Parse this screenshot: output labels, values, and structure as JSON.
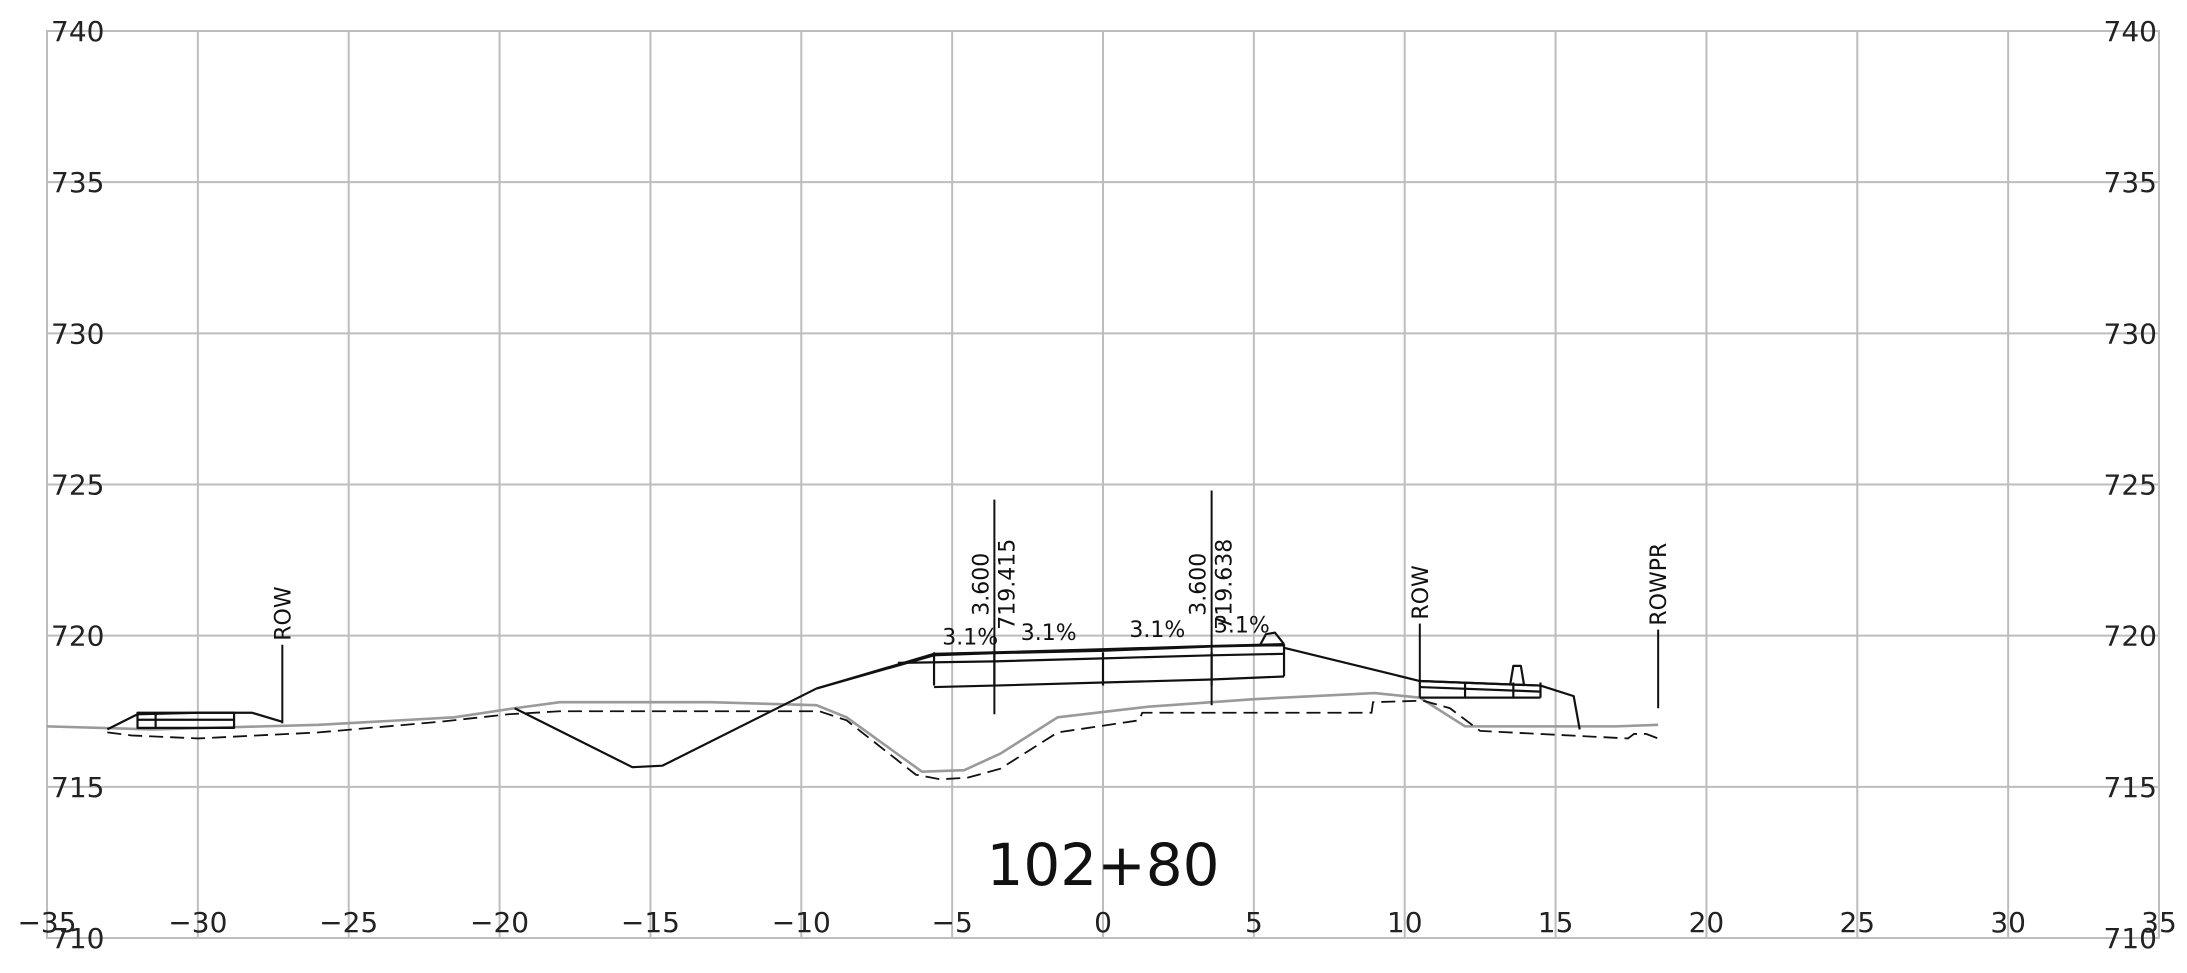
{
  "chart_data": {
    "type": "cross-section",
    "station": "102+80",
    "xlim": [
      -35,
      35
    ],
    "ylim": [
      710,
      740
    ],
    "x_ticks": [
      -35,
      -30,
      -25,
      -20,
      -15,
      -10,
      -5,
      0,
      5,
      10,
      15,
      20,
      25,
      30,
      35
    ],
    "x_tick_labels": [
      "−35",
      "−30",
      "−25",
      "−20",
      "−15",
      "−10",
      "−5",
      "0",
      "5",
      "10",
      "15",
      "20",
      "25",
      "30",
      "35"
    ],
    "y_ticks": [
      710,
      715,
      720,
      725,
      730,
      735,
      740
    ],
    "y_tick_labels": [
      "710",
      "715",
      "720",
      "725",
      "730",
      "735",
      "740"
    ],
    "grid": true,
    "offset_labels": [
      {
        "x": -3.6,
        "top": 724.5,
        "bottom": 717.4,
        "width": "3.600",
        "elevation": "719.415"
      },
      {
        "x": 3.6,
        "top": 724.8,
        "bottom": 717.7,
        "width": "3.600",
        "elevation": "719.638"
      }
    ],
    "slope_labels": [
      {
        "x": -4.4,
        "y": 719.7,
        "text": "3.1%"
      },
      {
        "x": -1.8,
        "y": 719.85,
        "text": "3.1%"
      },
      {
        "x": 1.8,
        "y": 719.95,
        "text": "3.1%"
      },
      {
        "x": 4.6,
        "y": 720.1,
        "text": "3.1%"
      }
    ],
    "markers": [
      {
        "x": -27.2,
        "text": "ROW",
        "top": 719.7,
        "bottom": 717.1
      },
      {
        "x": 10.5,
        "text": "ROW",
        "top": 720.4,
        "bottom": 718.4
      },
      {
        "x": 18.4,
        "text": "ROWPR",
        "top": 720.2,
        "bottom": 717.6
      }
    ],
    "series": [
      {
        "style": "existing-ground",
        "x": [
          -35,
          -31.5,
          -26,
          -21.5,
          -19.5,
          -18,
          -13,
          -9.5,
          -8.5,
          -6,
          -4.6,
          -3.4,
          -1.5,
          1.5,
          5,
          9,
          10.5,
          12,
          17,
          18.4
        ],
        "y": [
          717.0,
          716.9,
          717.05,
          717.3,
          717.6,
          717.8,
          717.8,
          717.7,
          717.3,
          715.5,
          715.55,
          716.1,
          717.3,
          717.65,
          717.9,
          718.1,
          717.95,
          717.0,
          717.0,
          717.05
        ]
      },
      {
        "style": "subgrade",
        "x": [
          -33,
          -32.2,
          -30,
          -26,
          -22,
          -19.7,
          -18,
          -13,
          -9.4,
          -8.5,
          -6.2,
          -5.4,
          -4.5,
          -3.4,
          -1.5,
          1.2,
          1.3,
          8.9,
          8.95,
          10.6,
          11.5,
          12.5,
          17.4,
          17.6,
          18.0,
          18.4
        ],
        "y": [
          716.8,
          716.7,
          716.6,
          716.8,
          717.15,
          717.4,
          717.5,
          717.5,
          717.5,
          717.2,
          715.4,
          715.25,
          715.3,
          715.6,
          716.8,
          717.2,
          717.45,
          717.45,
          717.8,
          717.85,
          717.6,
          716.85,
          716.6,
          716.75,
          716.75,
          716.6
        ]
      },
      {
        "style": "proposed-left-berm",
        "x": [
          -33,
          -32,
          -30,
          -28.2,
          -27.2
        ],
        "y": [
          716.9,
          717.4,
          717.45,
          717.45,
          717.15
        ]
      },
      {
        "style": "proposed-ditch",
        "x": [
          -19.5,
          -15.6,
          -14.6,
          -9.5
        ],
        "y": [
          717.6,
          715.65,
          715.7,
          718.25
        ]
      },
      {
        "style": "proposed-slope-left",
        "x": [
          -9.5,
          -5.6
        ],
        "y": [
          718.25,
          719.4
        ]
      },
      {
        "style": "proposed-shoulder-top-left",
        "x": [
          -9.5,
          -5.6,
          -3.6,
          0,
          3.6,
          5.4,
          6.0
        ],
        "y": [
          718.25,
          719.35,
          719.42,
          719.5,
          719.64,
          719.68,
          719.68
        ]
      },
      {
        "style": "proposed-slope-right",
        "x": [
          6.0,
          10.5,
          14.5,
          15.6,
          15.8
        ],
        "y": [
          719.6,
          718.5,
          718.35,
          718.0,
          716.9
        ]
      }
    ]
  }
}
